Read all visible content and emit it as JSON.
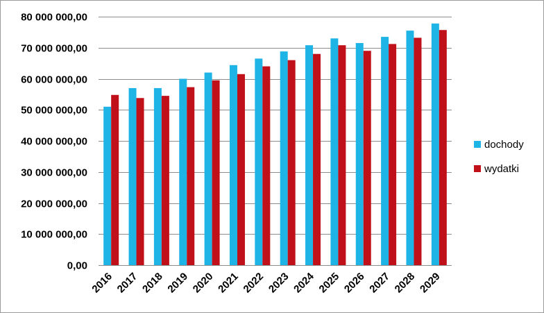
{
  "chart_data": {
    "type": "bar",
    "title": "",
    "xlabel": "",
    "ylabel": "",
    "categories": [
      "2016",
      "2017",
      "2018",
      "2019",
      "2020",
      "2021",
      "2022",
      "2023",
      "2024",
      "2025",
      "2026",
      "2027",
      "2028",
      "2029"
    ],
    "series": [
      {
        "name": "dochody",
        "color": "#1fb4e6",
        "values": [
          51000000,
          57000000,
          57000000,
          60000000,
          62000000,
          64400000,
          66500000,
          68800000,
          70800000,
          73000000,
          71500000,
          73500000,
          75500000,
          77800000
        ]
      },
      {
        "name": "wydatki",
        "color": "#c0101a",
        "values": [
          54800000,
          53800000,
          54500000,
          57300000,
          59500000,
          61500000,
          64000000,
          66000000,
          68000000,
          70800000,
          69000000,
          71200000,
          73200000,
          75700000
        ]
      }
    ],
    "ylim": [
      0,
      80000000
    ],
    "yticks": [
      {
        "value": 0,
        "label": "0,00"
      },
      {
        "value": 10000000,
        "label": "10 000 000,00"
      },
      {
        "value": 20000000,
        "label": "20 000 000,00"
      },
      {
        "value": 30000000,
        "label": "30 000 000,00"
      },
      {
        "value": 40000000,
        "label": "40 000 000,00"
      },
      {
        "value": 50000000,
        "label": "50 000 000,00"
      },
      {
        "value": 60000000,
        "label": "60 000 000,00"
      },
      {
        "value": 70000000,
        "label": "70 000 000,00"
      },
      {
        "value": 80000000,
        "label": "80 000 000,00"
      }
    ],
    "grid": true,
    "legend_position": "right"
  }
}
